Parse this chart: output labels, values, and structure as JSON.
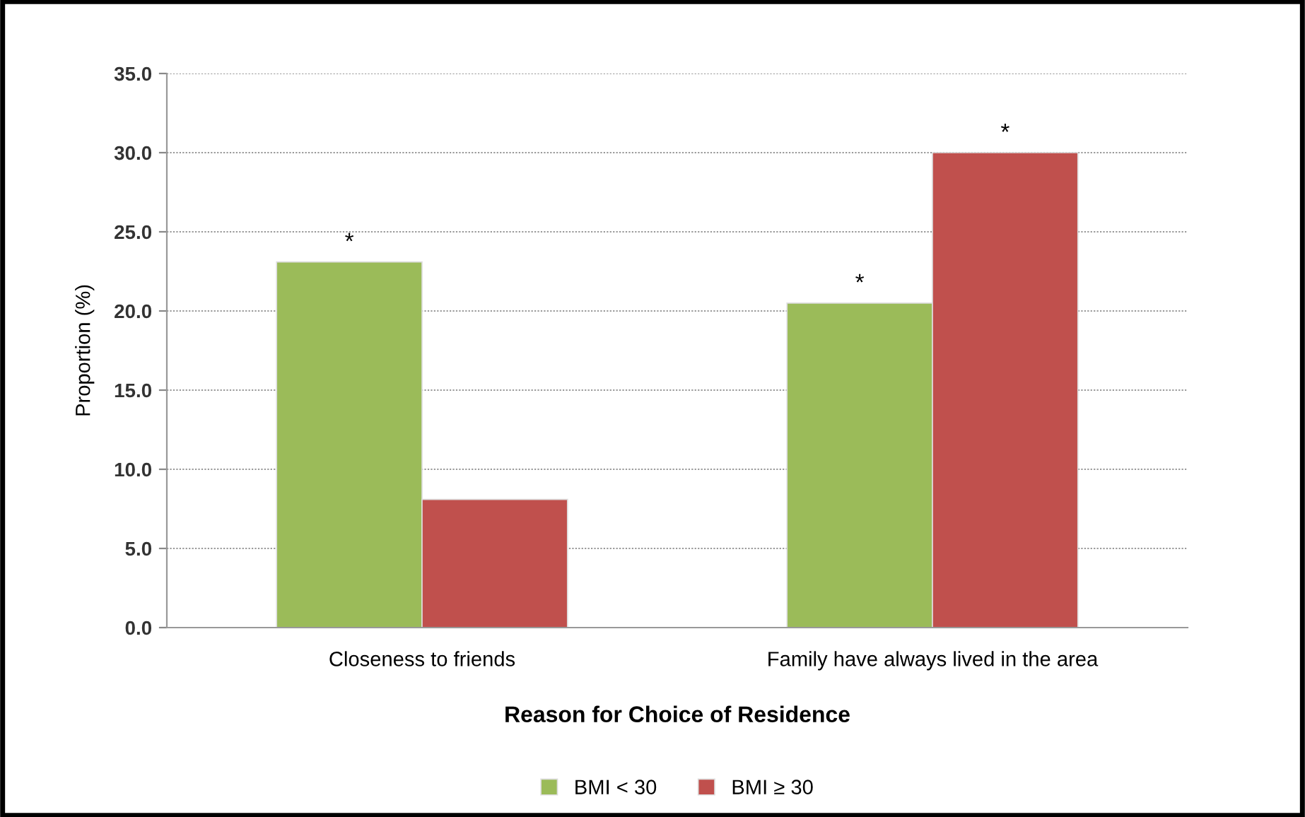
{
  "chart_data": {
    "type": "bar",
    "xlabel": "Reason for Choice of Residence",
    "ylabel": "Proportion (%)",
    "categories": [
      "Closeness to friends",
      "Family have always lived in the area"
    ],
    "series": [
      {
        "name": "BMI < 30",
        "color": "#9bbb59",
        "values": [
          23.1,
          20.5
        ]
      },
      {
        "name": "BMI ≥ 30",
        "color": "#c0504d",
        "values": [
          8.1,
          30.0
        ]
      }
    ],
    "ylim": [
      0,
      35
    ],
    "yticks": [
      {
        "value": 0,
        "label": "0.0"
      },
      {
        "value": 5,
        "label": "5.0"
      },
      {
        "value": 10,
        "label": "10.0"
      },
      {
        "value": 15,
        "label": "15.0"
      },
      {
        "value": 20,
        "label": "20.0"
      },
      {
        "value": 25,
        "label": "25.0"
      },
      {
        "value": 30,
        "label": "30.0"
      },
      {
        "value": 35,
        "label": "35.0"
      }
    ],
    "annotations": [
      "*",
      "*",
      "*"
    ],
    "grid": "y",
    "legend": "bottom"
  }
}
